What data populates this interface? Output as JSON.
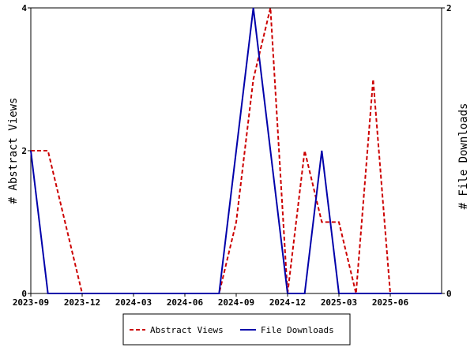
{
  "chart_data": {
    "type": "line",
    "x": [
      "2023-09",
      "2023-10",
      "2023-11",
      "2023-12",
      "2024-01",
      "2024-02",
      "2024-03",
      "2024-04",
      "2024-05",
      "2024-06",
      "2024-07",
      "2024-08",
      "2024-09",
      "2024-10",
      "2024-11",
      "2024-12",
      "2025-01",
      "2025-02",
      "2025-03",
      "2025-04",
      "2025-05",
      "2025-06",
      "2025-07",
      "2025-08",
      "2025-09"
    ],
    "x_ticks": [
      "2023-09",
      "2023-12",
      "2024-03",
      "2024-06",
      "2024-09",
      "2024-12",
      "2025-03",
      "2025-06"
    ],
    "series": [
      {
        "name": "Abstract Views",
        "axis": "left",
        "color": "#cc0000",
        "dash": "dashed",
        "values": [
          2,
          2,
          1,
          0,
          0,
          0,
          0,
          0,
          0,
          0,
          0,
          0,
          1,
          3,
          4,
          0,
          2,
          1,
          1,
          0,
          3,
          0,
          0,
          0,
          0
        ]
      },
      {
        "name": "File Downloads",
        "axis": "right",
        "color": "#0000aa",
        "dash": "solid",
        "values": [
          1,
          0,
          0,
          0,
          0,
          0,
          0,
          0,
          0,
          0,
          0,
          0,
          1,
          2,
          1,
          0,
          0,
          1,
          0,
          0,
          0,
          0,
          0,
          0,
          0
        ]
      }
    ],
    "ylabel_left": "# Abstract Views",
    "ylabel_right": "# File Downloads",
    "ylim_left": [
      0,
      4
    ],
    "ylim_right": [
      0,
      2
    ],
    "yticks_left": [
      "0",
      "2",
      "4"
    ],
    "yticks_right": [
      "0",
      "2"
    ],
    "grid": false,
    "legend_position": "bottom-center"
  }
}
